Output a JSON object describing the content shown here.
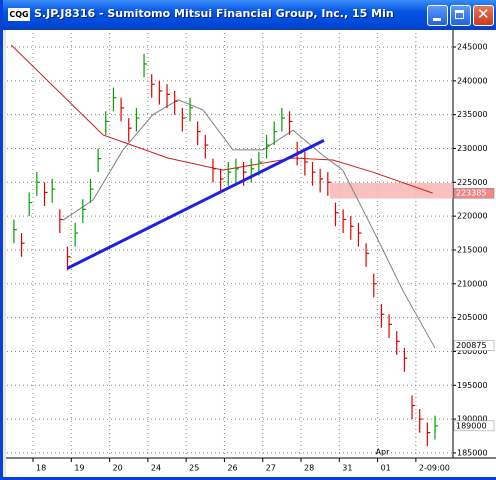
{
  "window_title": "S.JP.J8316 - Sumitomo Mitsui Financial Group, Inc., 15 Min",
  "app_icon": "CQG",
  "chart_data": {
    "type": "ohlc",
    "xlim": [
      -0.68,
      10.97
    ],
    "ylim": [
      184250,
      247070
    ],
    "xticks": [
      {
        "value": 0,
        "label": "18"
      },
      {
        "value": 1,
        "label": "19"
      },
      {
        "value": 2,
        "label": "20"
      },
      {
        "value": 3,
        "label": "24"
      },
      {
        "value": 4,
        "label": "25"
      },
      {
        "value": 5,
        "label": "26"
      },
      {
        "value": 6,
        "label": "27"
      },
      {
        "value": 7,
        "label": "28"
      },
      {
        "value": 8,
        "label": "31"
      },
      {
        "value": 9,
        "label": "01"
      },
      {
        "value": 10,
        "label": "2-09:00"
      }
    ],
    "x_annotation": {
      "value": 9,
      "label": "Apr"
    },
    "yticks": [
      185000,
      190000,
      195000,
      200000,
      205000,
      210000,
      215000,
      220000,
      225000,
      230000,
      235000,
      240000,
      245000
    ],
    "grid": true,
    "up_color": "#00a000",
    "down_color": "#e00000",
    "bars": {
      "x": [
        -0.5,
        -0.3,
        -0.1,
        0.1,
        0.3,
        0.5,
        0.7,
        0.9,
        1.1,
        1.3,
        1.5,
        1.7,
        1.9,
        2.1,
        2.3,
        2.5,
        2.7,
        2.9,
        3.1,
        3.3,
        3.5,
        3.7,
        3.9,
        4.1,
        4.3,
        4.5,
        4.7,
        4.9,
        5.1,
        5.3,
        5.5,
        5.7,
        5.9,
        6.1,
        6.3,
        6.5,
        6.7,
        6.9,
        7.1,
        7.3,
        7.5,
        7.7,
        7.9,
        8.1,
        8.3,
        8.5,
        8.7,
        8.9,
        9.1,
        9.3,
        9.5,
        9.7,
        9.9,
        10.1,
        10.3,
        10.5
      ],
      "high": [
        219500,
        217500,
        223500,
        226500,
        225000,
        225500,
        221000,
        215500,
        219000,
        222500,
        225500,
        230000,
        235500,
        239000,
        237500,
        234500,
        236000,
        244000,
        241000,
        240000,
        239500,
        238500,
        236000,
        237500,
        234000,
        232000,
        228500,
        227000,
        228000,
        228500,
        228000,
        228500,
        229500,
        232000,
        234000,
        236000,
        235500,
        231000,
        229500,
        228000,
        227000,
        226500,
        222000,
        221000,
        220000,
        219000,
        216000,
        211500,
        207000,
        205500,
        203000,
        200500,
        193500,
        191500,
        189500,
        190500
      ],
      "low": [
        216000,
        214000,
        220000,
        223000,
        221500,
        222000,
        217500,
        212000,
        215500,
        219000,
        222000,
        226500,
        232000,
        235500,
        234000,
        231000,
        232500,
        240500,
        237500,
        236500,
        236000,
        235000,
        232500,
        234000,
        230500,
        228500,
        225000,
        223500,
        224500,
        225000,
        224500,
        225000,
        226000,
        228500,
        230500,
        232500,
        232000,
        227500,
        226000,
        224500,
        223500,
        223000,
        218500,
        217500,
        216500,
        215500,
        212500,
        208000,
        203500,
        202000,
        199500,
        197000,
        190000,
        188000,
        186000,
        187000
      ],
      "close": [
        218000,
        216000,
        222000,
        225000,
        223500,
        224000,
        219500,
        214000,
        217500,
        221000,
        224000,
        228500,
        234000,
        237500,
        236000,
        233000,
        234500,
        242500,
        239500,
        238500,
        238000,
        237000,
        234500,
        236000,
        232500,
        230500,
        227000,
        225500,
        226500,
        227000,
        226500,
        227000,
        228000,
        230500,
        232500,
        234500,
        234000,
        229500,
        228000,
        226500,
        225500,
        225000,
        220500,
        219500,
        218500,
        217500,
        214500,
        210000,
        205500,
        204000,
        201500,
        199000,
        192000,
        190000,
        188000,
        189000
      ]
    },
    "lines": [
      {
        "color": "#d02020",
        "x": [
          -0.57,
          1.83,
          3.52,
          4.96,
          6.79,
          7.83,
          8.88,
          10.44
        ],
        "values": [
          245300,
          232000,
          228600,
          226800,
          228600,
          228300,
          226500,
          223400
        ]
      },
      {
        "color": "#808080",
        "x": [
          0.78,
          1.57,
          2.35,
          3.13,
          3.79,
          4.44,
          5.22,
          6.01,
          6.79,
          7.57,
          8.09,
          8.88,
          9.66,
          10.5
        ],
        "values": [
          219400,
          222400,
          229800,
          235000,
          237200,
          235700,
          229800,
          229800,
          232700,
          229000,
          226800,
          218000,
          209000,
          200500
        ]
      }
    ],
    "trendline": {
      "color": "#2020e0",
      "x": [
        0.9,
        7.6
      ],
      "values": [
        212300,
        231200
      ]
    },
    "highlight": {
      "color": "#f8b0b0",
      "x": [
        7.75,
        10.97
      ],
      "values": [
        222600,
        224900
      ]
    },
    "price_markers": [
      {
        "value": 223385,
        "color": "#f08888"
      },
      {
        "value": 200875,
        "color": "#ffffff"
      },
      {
        "value": 189000,
        "color": "#ffffff"
      }
    ]
  }
}
